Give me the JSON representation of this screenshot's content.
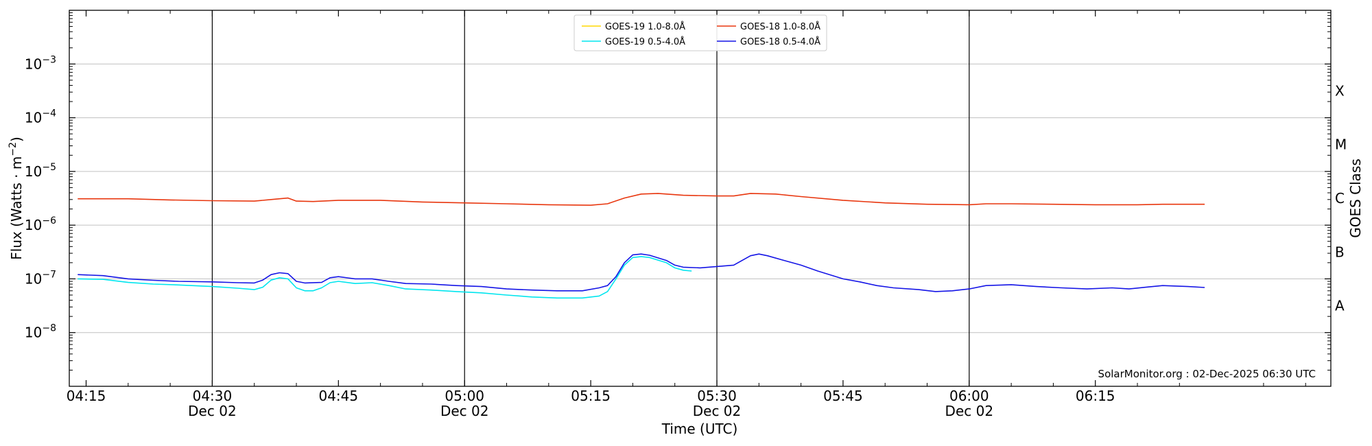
{
  "chart_data": {
    "type": "line",
    "xlabel": "Time (UTC)",
    "ylabel": "Flux (Watts · m",
    "ylabel_sup": "−2",
    "ylabel_close": ")",
    "y_scale": "log",
    "ylim": [
      1e-09,
      0.01
    ],
    "xlim": [
      "04:13",
      "06:43"
    ],
    "grid": "horizontal at decades",
    "legend_position": "top-center",
    "x_ticks": [
      {
        "t": "04:15",
        "label": "04:15",
        "date": ""
      },
      {
        "t": "04:30",
        "label": "04:30",
        "date": "Dec 02"
      },
      {
        "t": "04:45",
        "label": "04:45",
        "date": ""
      },
      {
        "t": "05:00",
        "label": "05:00",
        "date": "Dec 02"
      },
      {
        "t": "05:15",
        "label": "05:15",
        "date": ""
      },
      {
        "t": "05:30",
        "label": "05:30",
        "date": "Dec 02"
      },
      {
        "t": "05:45",
        "label": "05:45",
        "date": ""
      },
      {
        "t": "06:00",
        "label": "06:00",
        "date": "Dec 02"
      },
      {
        "t": "06:15",
        "label": "06:15",
        "date": ""
      }
    ],
    "vertical_lines": [
      "04:30",
      "05:00",
      "05:30",
      "06:00"
    ],
    "y_ticks": [
      {
        "value": 1e-08,
        "base": "10",
        "exp": "−8"
      },
      {
        "value": 1e-07,
        "base": "10",
        "exp": "−7"
      },
      {
        "value": 1e-06,
        "base": "10",
        "exp": "−6"
      },
      {
        "value": 1e-05,
        "base": "10",
        "exp": "−5"
      },
      {
        "value": 0.0001,
        "base": "10",
        "exp": "−4"
      },
      {
        "value": 0.001,
        "base": "10",
        "exp": "−3"
      }
    ],
    "right_axis": {
      "label": "GOES Class",
      "classes": [
        {
          "name": "A",
          "value": 3.16e-08
        },
        {
          "name": "B",
          "value": 3.16e-07
        },
        {
          "name": "C",
          "value": 3.16e-06
        },
        {
          "name": "M",
          "value": 3.16e-05
        },
        {
          "name": "X",
          "value": 0.000316
        }
      ]
    },
    "credit": "SolarMonitor.org : 02-Dec-2025 06:30 UTC",
    "series": [
      {
        "name": "GOES-19 1.0-8.0Å",
        "color": "#FFD700",
        "points": []
      },
      {
        "name": "GOES-18 1.0-8.0Å",
        "color": "#E8360E",
        "points": [
          [
            "04:14",
            3.1e-06
          ],
          [
            "04:20",
            3.1e-06
          ],
          [
            "04:25",
            2.95e-06
          ],
          [
            "04:30",
            2.85e-06
          ],
          [
            "04:35",
            2.8e-06
          ],
          [
            "04:37",
            3e-06
          ],
          [
            "04:39",
            3.2e-06
          ],
          [
            "04:40",
            2.8e-06
          ],
          [
            "04:42",
            2.75e-06
          ],
          [
            "04:45",
            2.9e-06
          ],
          [
            "04:50",
            2.9e-06
          ],
          [
            "04:55",
            2.7e-06
          ],
          [
            "05:00",
            2.6e-06
          ],
          [
            "05:05",
            2.5e-06
          ],
          [
            "05:10",
            2.4e-06
          ],
          [
            "05:15",
            2.35e-06
          ],
          [
            "05:17",
            2.5e-06
          ],
          [
            "05:19",
            3.2e-06
          ],
          [
            "05:21",
            3.8e-06
          ],
          [
            "05:23",
            3.9e-06
          ],
          [
            "05:26",
            3.6e-06
          ],
          [
            "05:30",
            3.5e-06
          ],
          [
            "05:32",
            3.5e-06
          ],
          [
            "05:34",
            3.9e-06
          ],
          [
            "05:37",
            3.8e-06
          ],
          [
            "05:40",
            3.4e-06
          ],
          [
            "05:45",
            2.9e-06
          ],
          [
            "05:50",
            2.6e-06
          ],
          [
            "05:55",
            2.45e-06
          ],
          [
            "06:00",
            2.4e-06
          ],
          [
            "06:02",
            2.5e-06
          ],
          [
            "06:05",
            2.5e-06
          ],
          [
            "06:10",
            2.45e-06
          ],
          [
            "06:15",
            2.4e-06
          ],
          [
            "06:20",
            2.4e-06
          ],
          [
            "06:23",
            2.45e-06
          ],
          [
            "06:26",
            2.45e-06
          ],
          [
            "06:28",
            2.45e-06
          ]
        ]
      },
      {
        "name": "GOES-19 0.5-4.0Å",
        "color": "#00E5EE",
        "points": [
          [
            "04:14",
            1e-07
          ],
          [
            "04:17",
            9.8e-08
          ],
          [
            "04:20",
            8.6e-08
          ],
          [
            "04:23",
            8e-08
          ],
          [
            "04:26",
            7.7e-08
          ],
          [
            "04:30",
            7.2e-08
          ],
          [
            "04:33",
            6.7e-08
          ],
          [
            "04:35",
            6.3e-08
          ],
          [
            "04:36",
            7e-08
          ],
          [
            "04:37",
            9.5e-08
          ],
          [
            "04:38",
            1.05e-07
          ],
          [
            "04:39",
            1e-07
          ],
          [
            "04:40",
            6.8e-08
          ],
          [
            "04:41",
            6e-08
          ],
          [
            "04:42",
            6e-08
          ],
          [
            "04:43",
            6.8e-08
          ],
          [
            "04:44",
            8.5e-08
          ],
          [
            "04:45",
            9e-08
          ],
          [
            "04:47",
            8.2e-08
          ],
          [
            "04:49",
            8.5e-08
          ],
          [
            "04:51",
            7.5e-08
          ],
          [
            "04:53",
            6.5e-08
          ],
          [
            "04:56",
            6.2e-08
          ],
          [
            "04:59",
            5.8e-08
          ],
          [
            "05:02",
            5.5e-08
          ],
          [
            "05:05",
            5e-08
          ],
          [
            "05:08",
            4.6e-08
          ],
          [
            "05:11",
            4.4e-08
          ],
          [
            "05:14",
            4.4e-08
          ],
          [
            "05:16",
            4.8e-08
          ],
          [
            "05:17",
            5.8e-08
          ],
          [
            "05:18",
            1e-07
          ],
          [
            "05:19",
            1.8e-07
          ],
          [
            "05:20",
            2.5e-07
          ],
          [
            "05:21",
            2.6e-07
          ],
          [
            "05:22",
            2.5e-07
          ],
          [
            "05:24",
            2e-07
          ],
          [
            "05:25",
            1.6e-07
          ],
          [
            "05:26",
            1.45e-07
          ],
          [
            "05:27",
            1.4e-07
          ]
        ]
      },
      {
        "name": "GOES-18 0.5-4.0Å",
        "color": "#1414E6",
        "points": [
          [
            "04:14",
            1.2e-07
          ],
          [
            "04:17",
            1.15e-07
          ],
          [
            "04:20",
            1e-07
          ],
          [
            "04:23",
            9.4e-08
          ],
          [
            "04:26",
            9e-08
          ],
          [
            "04:30",
            8.8e-08
          ],
          [
            "04:33",
            8.5e-08
          ],
          [
            "04:35",
            8.4e-08
          ],
          [
            "04:36",
            9.5e-08
          ],
          [
            "04:37",
            1.2e-07
          ],
          [
            "04:38",
            1.3e-07
          ],
          [
            "04:39",
            1.25e-07
          ],
          [
            "04:40",
            9e-08
          ],
          [
            "04:41",
            8.4e-08
          ],
          [
            "04:43",
            8.6e-08
          ],
          [
            "04:44",
            1.05e-07
          ],
          [
            "04:45",
            1.1e-07
          ],
          [
            "04:47",
            1e-07
          ],
          [
            "04:49",
            1e-07
          ],
          [
            "04:51",
            9e-08
          ],
          [
            "04:53",
            8.2e-08
          ],
          [
            "04:56",
            8e-08
          ],
          [
            "04:59",
            7.5e-08
          ],
          [
            "05:02",
            7.2e-08
          ],
          [
            "05:05",
            6.5e-08
          ],
          [
            "05:08",
            6.2e-08
          ],
          [
            "05:11",
            6e-08
          ],
          [
            "05:14",
            6e-08
          ],
          [
            "05:16",
            6.8e-08
          ],
          [
            "05:17",
            7.5e-08
          ],
          [
            "05:18",
            1.1e-07
          ],
          [
            "05:19",
            2e-07
          ],
          [
            "05:20",
            2.8e-07
          ],
          [
            "05:21",
            2.9e-07
          ],
          [
            "05:22",
            2.75e-07
          ],
          [
            "05:24",
            2.2e-07
          ],
          [
            "05:25",
            1.8e-07
          ],
          [
            "05:26",
            1.65e-07
          ],
          [
            "05:28",
            1.6e-07
          ],
          [
            "05:30",
            1.7e-07
          ],
          [
            "05:32",
            1.8e-07
          ],
          [
            "05:34",
            2.7e-07
          ],
          [
            "05:35",
            2.9e-07
          ],
          [
            "05:36",
            2.7e-07
          ],
          [
            "05:38",
            2.2e-07
          ],
          [
            "05:40",
            1.8e-07
          ],
          [
            "05:42",
            1.4e-07
          ],
          [
            "05:45",
            1e-07
          ],
          [
            "05:47",
            8.8e-08
          ],
          [
            "05:49",
            7.5e-08
          ],
          [
            "05:51",
            6.8e-08
          ],
          [
            "05:54",
            6.3e-08
          ],
          [
            "05:56",
            5.8e-08
          ],
          [
            "05:58",
            6e-08
          ],
          [
            "06:00",
            6.5e-08
          ],
          [
            "06:02",
            7.5e-08
          ],
          [
            "06:05",
            7.8e-08
          ],
          [
            "06:08",
            7.2e-08
          ],
          [
            "06:11",
            6.8e-08
          ],
          [
            "06:14",
            6.5e-08
          ],
          [
            "06:17",
            6.8e-08
          ],
          [
            "06:19",
            6.5e-08
          ],
          [
            "06:21",
            7e-08
          ],
          [
            "06:23",
            7.5e-08
          ],
          [
            "06:26",
            7.2e-08
          ],
          [
            "06:28",
            6.9e-08
          ]
        ]
      }
    ]
  }
}
